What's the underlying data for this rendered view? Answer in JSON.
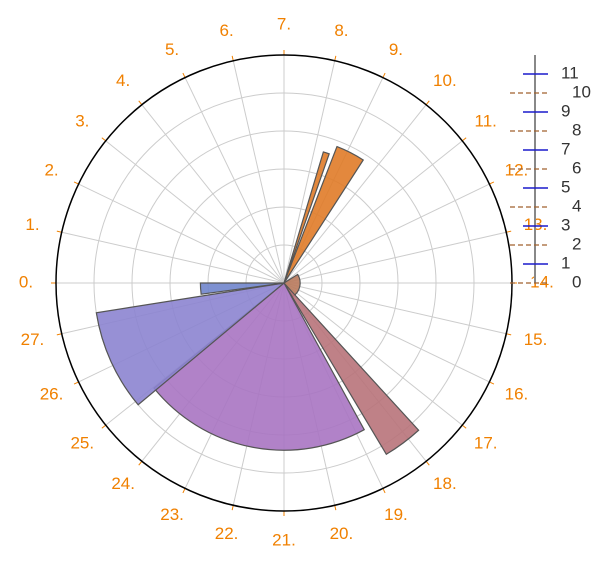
{
  "chart_data": {
    "type": "barpolar",
    "xlim": [
      0,
      28
    ],
    "xticks": [
      {
        "value": 0,
        "label": "0."
      },
      {
        "value": 1,
        "label": "1."
      },
      {
        "value": 2,
        "label": "2."
      },
      {
        "value": 3,
        "label": "3."
      },
      {
        "value": 4,
        "label": "4."
      },
      {
        "value": 5,
        "label": "5."
      },
      {
        "value": 6,
        "label": "6."
      },
      {
        "value": 7,
        "label": "7."
      },
      {
        "value": 8,
        "label": "8."
      },
      {
        "value": 9,
        "label": "9."
      },
      {
        "value": 10,
        "label": "10."
      },
      {
        "value": 11,
        "label": "11."
      },
      {
        "value": 12,
        "label": "12."
      },
      {
        "value": 13,
        "label": "13."
      },
      {
        "value": 14,
        "label": "14."
      },
      {
        "value": 15,
        "label": "15."
      },
      {
        "value": 16,
        "label": "16."
      },
      {
        "value": 17,
        "label": "17."
      },
      {
        "value": 18,
        "label": "18."
      },
      {
        "value": 19,
        "label": "19."
      },
      {
        "value": 20,
        "label": "20."
      },
      {
        "value": 21,
        "label": "21."
      },
      {
        "value": 22,
        "label": "22."
      },
      {
        "value": 23,
        "label": "23."
      },
      {
        "value": 24,
        "label": "24."
      },
      {
        "value": 25,
        "label": "25."
      },
      {
        "value": 26,
        "label": "26."
      },
      {
        "value": 27,
        "label": "27."
      }
    ],
    "ylim": [
      0,
      12
    ],
    "yticks": [
      0,
      1,
      2,
      3,
      4,
      5,
      6,
      7,
      8,
      9,
      10,
      11
    ],
    "grid": [
      2,
      4,
      6,
      8,
      10
    ],
    "series": [
      {
        "color": "#e07b28",
        "theta": [
          8.4
        ],
        "width": [
          0.2
        ],
        "values": [
          7.2
        ]
      },
      {
        "color": "#e07b28",
        "theta": [
          9.1
        ],
        "width": [
          0.9
        ],
        "values": [
          7.7
        ]
      },
      {
        "color": "#b97a5c",
        "theta": [
          15
        ],
        "width": [
          7
        ],
        "values": [
          0.85
        ]
      },
      {
        "color": "#b8737a",
        "theta": [
          18.15
        ],
        "width": [
          0.9
        ],
        "values": [
          10.5
        ]
      },
      {
        "color": "#a874c2",
        "theta": [
          21.87
        ],
        "width": [
          6.2
        ],
        "values": [
          8.8
        ]
      },
      {
        "color": "#8c84d0",
        "theta": [
          26.1
        ],
        "width": [
          2.4
        ],
        "values": [
          10
        ]
      },
      {
        "color": "#7085cc",
        "theta": [
          27.7
        ],
        "width": [
          0.6
        ],
        "values": [
          4.4
        ]
      }
    ]
  }
}
